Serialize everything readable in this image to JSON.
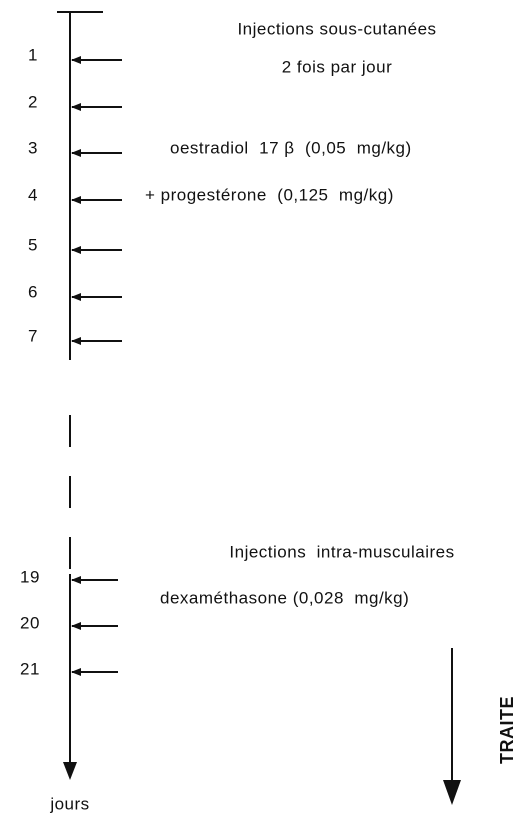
{
  "top": {
    "title": "Injections sous-cutanées",
    "frequency": "2 fois par jour",
    "drugs": [
      "oestradiol  17 β  (0,05  mg/kg)",
      "+ progestérone  (0,125  mg/kg)"
    ],
    "days": [
      "1",
      "2",
      "3",
      "4",
      "5",
      "6",
      "7"
    ]
  },
  "bottom": {
    "title": "Injections  intra-musculaires",
    "drugs": [
      "dexaméthasone (0,028  mg/kg)"
    ],
    "days": [
      "19",
      "20",
      "21"
    ]
  },
  "axis_label": "jours",
  "side_label": "TRAITE"
}
